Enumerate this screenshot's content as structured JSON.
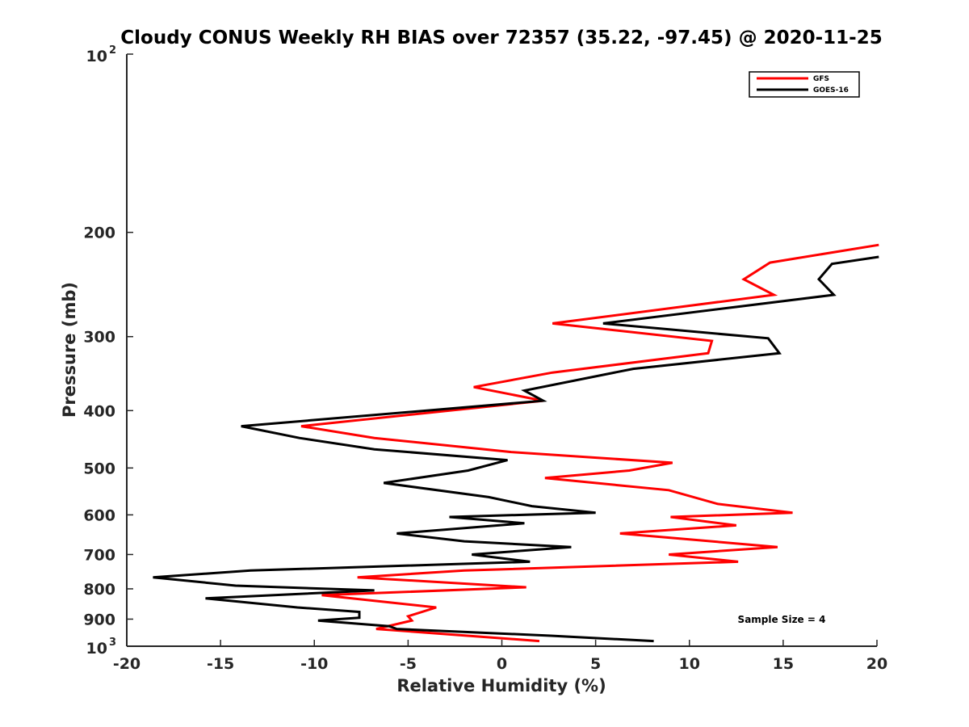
{
  "chart_data": {
    "type": "line",
    "title": "Cloudy CONUS Weekly RH BIAS over 72357 (35.22, -97.45) @ 2020-11-25",
    "xlabel": "Relative Humidity (%)",
    "ylabel": "Pressure (mb)",
    "xlim": [
      -20,
      20
    ],
    "ylim": [
      100,
      1000
    ],
    "y_scale": "log",
    "y_reversed": true,
    "x_ticks": [
      -20,
      -15,
      -10,
      -5,
      0,
      5,
      10,
      15,
      20
    ],
    "x_tick_labels": [
      "-20",
      "-15",
      "-10",
      "-5",
      "0",
      "5",
      "10",
      "15",
      "20"
    ],
    "y_ticks": [
      {
        "value": 100,
        "base": "10",
        "exp": "2"
      },
      {
        "value": 200,
        "label": "200"
      },
      {
        "value": 300,
        "label": "300"
      },
      {
        "value": 400,
        "label": "400"
      },
      {
        "value": 500,
        "label": "500"
      },
      {
        "value": 600,
        "label": "600"
      },
      {
        "value": 700,
        "label": "700"
      },
      {
        "value": 800,
        "label": "800"
      },
      {
        "value": 900,
        "label": "900"
      },
      {
        "value": 1000,
        "base": "10",
        "exp": "3"
      }
    ],
    "grid": false,
    "legend_position": "top-right",
    "series": [
      {
        "name": "GFS",
        "color": "#ff0000",
        "points": [
          {
            "x": 20.1,
            "y": 210
          },
          {
            "x": 14.3,
            "y": 225
          },
          {
            "x": 12.9,
            "y": 240
          },
          {
            "x": 14.5,
            "y": 255
          },
          {
            "x": 2.7,
            "y": 285
          },
          {
            "x": 11.2,
            "y": 305
          },
          {
            "x": 11.0,
            "y": 320
          },
          {
            "x": 2.7,
            "y": 345
          },
          {
            "x": -1.5,
            "y": 365
          },
          {
            "x": 2.2,
            "y": 385
          },
          {
            "x": -10.7,
            "y": 425
          },
          {
            "x": -6.8,
            "y": 445
          },
          {
            "x": 0.5,
            "y": 470
          },
          {
            "x": 9.1,
            "y": 490
          },
          {
            "x": 6.8,
            "y": 505
          },
          {
            "x": 2.3,
            "y": 520
          },
          {
            "x": 8.9,
            "y": 545
          },
          {
            "x": 11.5,
            "y": 575
          },
          {
            "x": 15.5,
            "y": 595
          },
          {
            "x": 9.0,
            "y": 605
          },
          {
            "x": 12.5,
            "y": 625
          },
          {
            "x": 6.3,
            "y": 645
          },
          {
            "x": 14.7,
            "y": 680
          },
          {
            "x": 8.9,
            "y": 700
          },
          {
            "x": 12.6,
            "y": 720
          },
          {
            "x": -2.0,
            "y": 745
          },
          {
            "x": -7.7,
            "y": 765
          },
          {
            "x": 1.3,
            "y": 795
          },
          {
            "x": -9.6,
            "y": 820
          },
          {
            "x": -3.5,
            "y": 860
          },
          {
            "x": -5.0,
            "y": 890
          },
          {
            "x": -4.8,
            "y": 905
          },
          {
            "x": -6.7,
            "y": 935
          },
          {
            "x": 2.0,
            "y": 980
          }
        ]
      },
      {
        "name": "GOES-16",
        "color": "#000000",
        "points": [
          {
            "x": 20.1,
            "y": 220
          },
          {
            "x": 17.6,
            "y": 226
          },
          {
            "x": 16.9,
            "y": 240
          },
          {
            "x": 17.7,
            "y": 255
          },
          {
            "x": 5.4,
            "y": 285
          },
          {
            "x": 14.2,
            "y": 302
          },
          {
            "x": 14.8,
            "y": 320
          },
          {
            "x": 7.0,
            "y": 340
          },
          {
            "x": 1.2,
            "y": 370
          },
          {
            "x": 2.2,
            "y": 385
          },
          {
            "x": -13.9,
            "y": 425
          },
          {
            "x": -10.8,
            "y": 445
          },
          {
            "x": -6.8,
            "y": 465
          },
          {
            "x": 0.3,
            "y": 485
          },
          {
            "x": -1.8,
            "y": 505
          },
          {
            "x": -6.3,
            "y": 530
          },
          {
            "x": -0.7,
            "y": 560
          },
          {
            "x": 1.6,
            "y": 580
          },
          {
            "x": 5.0,
            "y": 595
          },
          {
            "x": -2.8,
            "y": 605
          },
          {
            "x": 1.2,
            "y": 620
          },
          {
            "x": -5.6,
            "y": 645
          },
          {
            "x": -2.0,
            "y": 665
          },
          {
            "x": 3.7,
            "y": 680
          },
          {
            "x": -1.6,
            "y": 700
          },
          {
            "x": 1.5,
            "y": 720
          },
          {
            "x": -13.4,
            "y": 745
          },
          {
            "x": -18.6,
            "y": 765
          },
          {
            "x": -14.2,
            "y": 790
          },
          {
            "x": -6.8,
            "y": 805
          },
          {
            "x": -15.8,
            "y": 830
          },
          {
            "x": -10.9,
            "y": 860
          },
          {
            "x": -7.6,
            "y": 875
          },
          {
            "x": -7.6,
            "y": 895
          },
          {
            "x": -9.8,
            "y": 905
          },
          {
            "x": -6.0,
            "y": 925
          },
          {
            "x": -5.6,
            "y": 935
          },
          {
            "x": 2.6,
            "y": 960
          },
          {
            "x": 8.1,
            "y": 980
          }
        ]
      }
    ],
    "annotation": "Sample Size = 4"
  }
}
